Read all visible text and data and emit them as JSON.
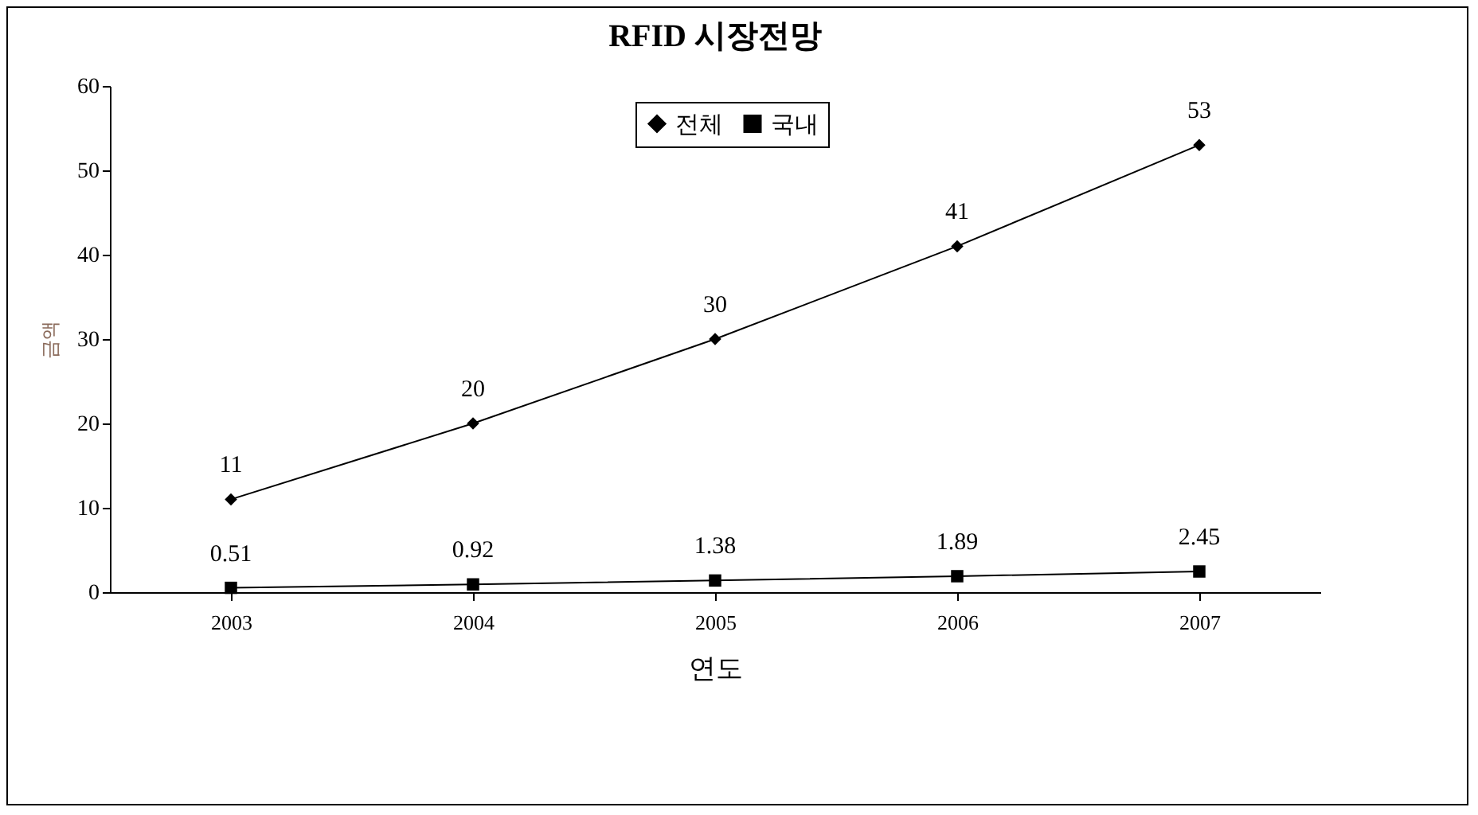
{
  "chart_data": {
    "type": "line",
    "title": "RFID 시장전망",
    "xlabel": "연도",
    "ylabel": "금액",
    "categories": [
      "2003",
      "2004",
      "2005",
      "2006",
      "2007"
    ],
    "series": [
      {
        "name": "전체",
        "color": "#000000",
        "marker": "diamond",
        "values": [
          11,
          20,
          30,
          41,
          53
        ]
      },
      {
        "name": "국내",
        "color": "#000000",
        "marker": "square",
        "values": [
          0.51,
          0.92,
          1.38,
          1.89,
          2.45
        ]
      }
    ],
    "ylim": [
      0,
      60
    ],
    "yticks": [
      0,
      10,
      20,
      30,
      40,
      50,
      60
    ],
    "grid": false,
    "legend": "top",
    "data_labels": true,
    "line_style": "solid"
  }
}
